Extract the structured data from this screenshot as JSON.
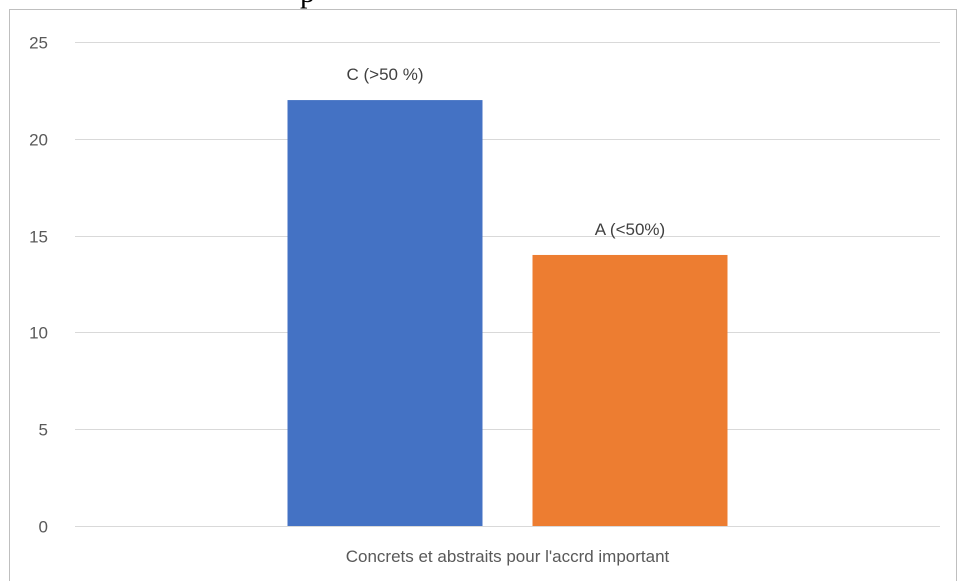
{
  "chart_data": {
    "type": "bar",
    "title_fragment": "p",
    "categories": [
      "Concrets et abstraits pour l'accrd important"
    ],
    "series": [
      {
        "name": "C (>50 %)",
        "values": [
          22
        ],
        "color": "#4472C4"
      },
      {
        "name": "A (<50%)",
        "values": [
          14
        ],
        "color": "#ED7D31"
      }
    ],
    "ylim": [
      0,
      25
    ],
    "yticks": [
      "0",
      "5",
      "10",
      "15",
      "20",
      "25"
    ],
    "ytick_values": [
      0,
      5,
      10,
      15,
      20,
      25
    ],
    "grid": true,
    "legend": "none",
    "data_labels": "series-name-above-bar"
  },
  "colors": {
    "grid": "#D9D9D9",
    "axis_text": "#595959",
    "border": "#BFBFBF"
  }
}
